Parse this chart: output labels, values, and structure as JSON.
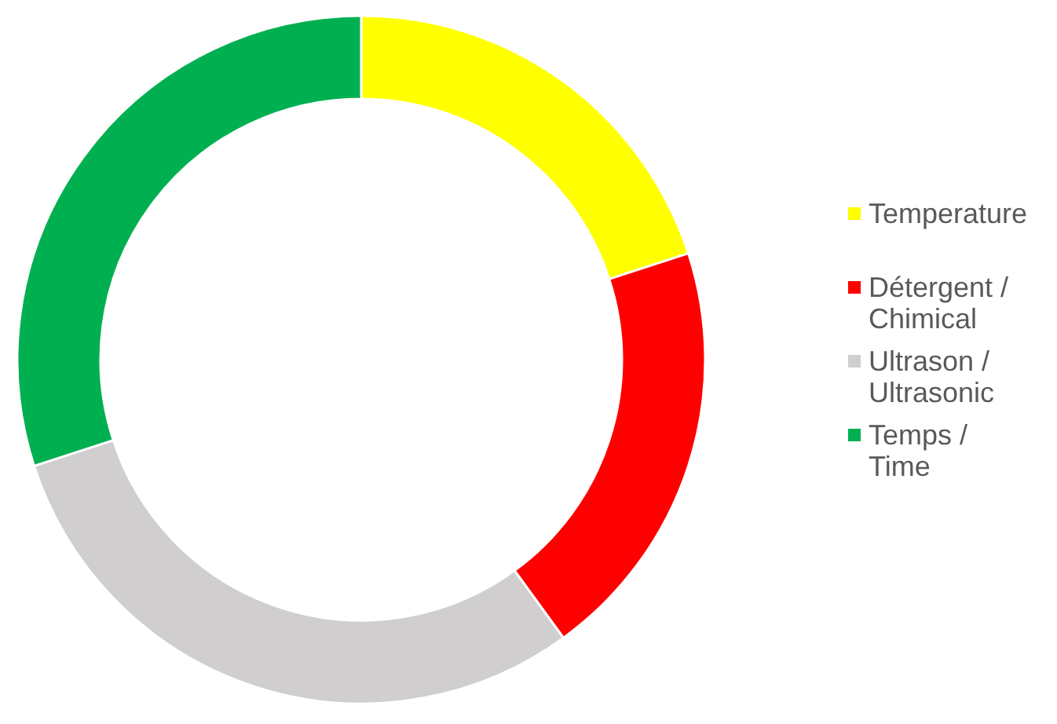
{
  "chart_data": {
    "type": "donut",
    "categories": [
      "Temperature",
      "Détergent / Chimical",
      "Ultrason / Ultrasonic",
      "Temps / Time"
    ],
    "values": [
      20,
      20,
      30,
      30
    ],
    "colors": [
      "#ffff00",
      "#ff0000",
      "#d0cece",
      "#00b050"
    ],
    "legend": "right"
  }
}
